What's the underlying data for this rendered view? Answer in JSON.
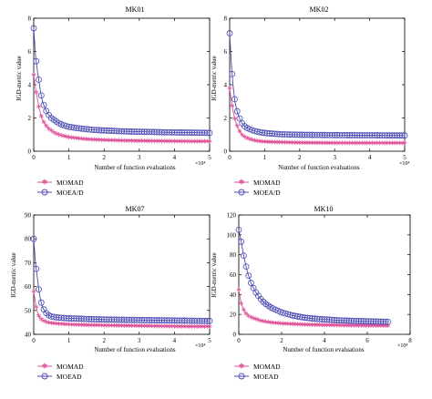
{
  "colors": {
    "series1": "#e0529a",
    "series2": "#4a4ab4",
    "axis": "#000000"
  },
  "chart_data": [
    {
      "type": "line",
      "title": "MK01",
      "xlabel": "Number of function evaluations",
      "ylabel": "IGD-metric value",
      "xlim": [
        0,
        5
      ],
      "ylim": [
        0,
        8
      ],
      "x_multiplier": "×10⁴",
      "xticks": [
        "0",
        "1",
        "2",
        "3",
        "4",
        "5"
      ],
      "yticks": [
        "0",
        "2",
        "4",
        "6",
        "8"
      ],
      "grid": false,
      "legend_position": "below",
      "series": [
        {
          "name": "MOMAD",
          "x": [
            0,
            0.05,
            0.1,
            0.15,
            0.2,
            0.25,
            0.3,
            0.35,
            0.4,
            0.5,
            0.6,
            0.7,
            0.8,
            0.9,
            1.0,
            1.2,
            1.4,
            1.6,
            1.8,
            2.0,
            2.5,
            3.0,
            3.5,
            4.0,
            4.5,
            5.0
          ],
          "y": [
            4.6,
            3.8,
            3.2,
            2.6,
            2.2,
            1.9,
            1.7,
            1.55,
            1.4,
            1.25,
            1.1,
            1.02,
            0.95,
            0.9,
            0.85,
            0.8,
            0.75,
            0.72,
            0.7,
            0.68,
            0.65,
            0.63,
            0.62,
            0.61,
            0.6,
            0.6
          ]
        },
        {
          "name": "MOEA/D",
          "x": [
            0,
            0.05,
            0.1,
            0.15,
            0.2,
            0.25,
            0.3,
            0.35,
            0.4,
            0.5,
            0.6,
            0.7,
            0.8,
            0.9,
            1.0,
            1.2,
            1.4,
            1.6,
            1.8,
            2.0,
            2.5,
            3.0,
            3.5,
            4.0,
            4.5,
            5.0
          ],
          "y": [
            7.4,
            5.8,
            4.9,
            4.2,
            3.5,
            3.0,
            2.7,
            2.45,
            2.25,
            2.0,
            1.85,
            1.7,
            1.6,
            1.52,
            1.47,
            1.4,
            1.35,
            1.3,
            1.27,
            1.25,
            1.2,
            1.17,
            1.15,
            1.13,
            1.12,
            1.1
          ]
        }
      ]
    },
    {
      "type": "line",
      "title": "MK02",
      "xlabel": "Number of function evaluations",
      "ylabel": "IGD-metric value",
      "xlim": [
        0,
        5
      ],
      "ylim": [
        0,
        8
      ],
      "x_multiplier": "×10⁴",
      "xticks": [
        "0",
        "1",
        "2",
        "3",
        "4",
        "5"
      ],
      "yticks": [
        "0",
        "2",
        "4",
        "6",
        "8"
      ],
      "grid": false,
      "legend_position": "below",
      "series": [
        {
          "name": "MOMAD",
          "x": [
            0,
            0.05,
            0.1,
            0.15,
            0.2,
            0.25,
            0.3,
            0.35,
            0.4,
            0.5,
            0.6,
            0.7,
            0.8,
            0.9,
            1.0,
            1.2,
            1.4,
            1.6,
            1.8,
            2.0,
            2.5,
            3.0,
            3.5,
            4.0,
            4.5,
            5.0
          ],
          "y": [
            3.8,
            3.0,
            2.4,
            1.9,
            1.6,
            1.35,
            1.15,
            1.0,
            0.9,
            0.8,
            0.72,
            0.66,
            0.62,
            0.6,
            0.58,
            0.56,
            0.55,
            0.54,
            0.53,
            0.52,
            0.51,
            0.5,
            0.5,
            0.5,
            0.5,
            0.5
          ]
        },
        {
          "name": "MOEA/D",
          "x": [
            0,
            0.05,
            0.1,
            0.15,
            0.2,
            0.25,
            0.3,
            0.35,
            0.4,
            0.5,
            0.6,
            0.7,
            0.8,
            0.9,
            1.0,
            1.2,
            1.4,
            1.6,
            1.8,
            2.0,
            2.5,
            3.0,
            3.5,
            4.0,
            4.5,
            5.0
          ],
          "y": [
            7.1,
            5.2,
            3.9,
            3.0,
            2.5,
            2.15,
            1.9,
            1.7,
            1.55,
            1.4,
            1.3,
            1.22,
            1.17,
            1.13,
            1.1,
            1.06,
            1.03,
            1.01,
            1.0,
            0.99,
            0.98,
            0.97,
            0.96,
            0.96,
            0.95,
            0.95
          ]
        }
      ]
    },
    {
      "type": "line",
      "title": "MK07",
      "xlabel": "Number of function evaluations",
      "ylabel": "IGD-metric value",
      "xlim": [
        0,
        5
      ],
      "ylim": [
        40,
        90
      ],
      "x_multiplier": "×10⁴",
      "xticks": [
        "0",
        "1",
        "2",
        "3",
        "4",
        "5"
      ],
      "yticks": [
        "40",
        "50",
        "60",
        "70",
        "80",
        "90"
      ],
      "grid": false,
      "legend_position": "below",
      "series": [
        {
          "name": "MOMAD",
          "x": [
            0,
            0.05,
            0.1,
            0.15,
            0.2,
            0.25,
            0.3,
            0.35,
            0.4,
            0.5,
            0.6,
            0.7,
            0.8,
            0.9,
            1.0,
            1.2,
            1.4,
            1.6,
            1.8,
            2.0,
            2.5,
            3.0,
            3.5,
            4.0,
            4.5,
            5.0
          ],
          "y": [
            58,
            53,
            49.5,
            47.5,
            46.5,
            46,
            45.6,
            45.3,
            45,
            44.8,
            44.6,
            44.5,
            44.4,
            44.3,
            44.2,
            44.1,
            44.0,
            43.9,
            43.9,
            43.8,
            43.7,
            43.6,
            43.5,
            43.4,
            43.3,
            43.3
          ]
        },
        {
          "name": "MOEAD",
          "x": [
            0,
            0.05,
            0.1,
            0.15,
            0.2,
            0.25,
            0.3,
            0.35,
            0.4,
            0.5,
            0.6,
            0.7,
            0.8,
            0.9,
            1.0,
            1.2,
            1.4,
            1.6,
            1.8,
            2.0,
            2.5,
            3.0,
            3.5,
            4.0,
            4.5,
            5.0
          ],
          "y": [
            80,
            70,
            64,
            58,
            54,
            51.5,
            50,
            49,
            48.2,
            47.5,
            47.2,
            47,
            46.9,
            46.8,
            46.7,
            46.6,
            46.5,
            46.4,
            46.3,
            46.2,
            46.1,
            46.0,
            45.9,
            45.8,
            45.7,
            45.6
          ]
        }
      ]
    },
    {
      "type": "line",
      "title": "MK10",
      "xlabel": "Number of function evaluations",
      "ylabel": "IGD-metric value",
      "xlim": [
        0,
        8
      ],
      "ylim": [
        0,
        120
      ],
      "x_multiplier": "×10⁴",
      "xticks": [
        "0",
        "2",
        "4",
        "6",
        "8"
      ],
      "yticks": [
        "0",
        "20",
        "40",
        "60",
        "80",
        "100",
        "120"
      ],
      "grid": false,
      "legend_position": "below",
      "series": [
        {
          "name": "MOMAD",
          "x": [
            0,
            0.1,
            0.2,
            0.3,
            0.4,
            0.5,
            0.6,
            0.8,
            1.0,
            1.2,
            1.5,
            2.0,
            2.5,
            3.0,
            3.5,
            4.0,
            4.5,
            5.0,
            5.5,
            6.0,
            6.5,
            7.0
          ],
          "y": [
            45,
            32,
            26,
            22,
            19.5,
            18,
            17,
            15.5,
            14,
            13,
            12,
            11,
            10.5,
            10,
            9.7,
            9.5,
            9.3,
            9.1,
            9.0,
            8.9,
            8.8,
            8.8
          ]
        },
        {
          "name": "MOEAD",
          "x": [
            0,
            0.1,
            0.2,
            0.3,
            0.4,
            0.5,
            0.6,
            0.8,
            1.0,
            1.2,
            1.5,
            2.0,
            2.5,
            3.0,
            3.5,
            4.0,
            4.5,
            5.0,
            5.5,
            6.0,
            6.5,
            7.0
          ],
          "y": [
            105,
            95,
            82,
            72,
            63,
            56,
            50,
            42,
            36,
            31.5,
            27,
            22,
            19,
            17,
            15.8,
            15,
            14.3,
            13.8,
            13.4,
            13.1,
            12.8,
            12.6
          ]
        }
      ]
    }
  ]
}
